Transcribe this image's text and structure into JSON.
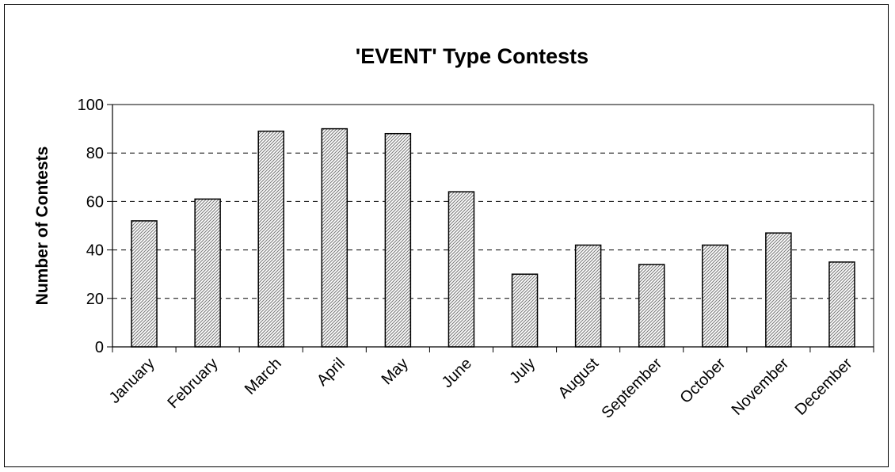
{
  "chart_data": {
    "type": "bar",
    "title": "'EVENT' Type Contests",
    "xlabel": "",
    "ylabel": "Number of Contests",
    "categories": [
      "January",
      "February",
      "March",
      "April",
      "May",
      "June",
      "July",
      "August",
      "September",
      "October",
      "November",
      "December"
    ],
    "values": [
      52,
      61,
      89,
      90,
      88,
      64,
      30,
      42,
      34,
      42,
      47,
      35
    ],
    "ylim": [
      0,
      100
    ],
    "yticks": [
      0,
      20,
      40,
      60,
      80,
      100
    ],
    "grid": "horizontal-dashed",
    "legend": "none",
    "bar_fill": "diagonal-hatch",
    "colors": {
      "bar_stroke": "#000000",
      "hatch": "#808080",
      "background": "#ffffff",
      "grid": "#000000"
    }
  }
}
